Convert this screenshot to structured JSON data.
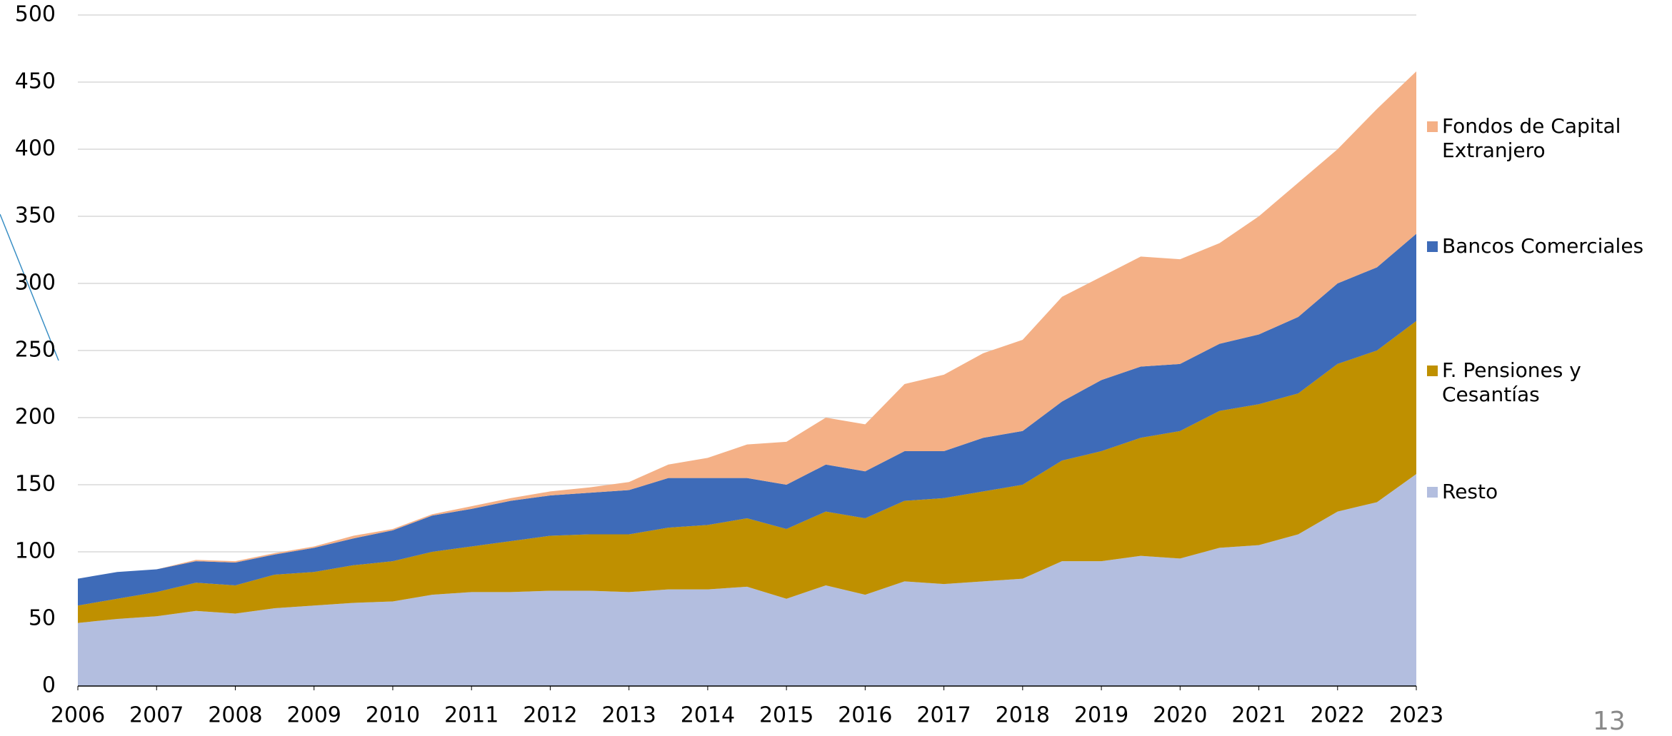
{
  "chart_data": {
    "type": "stacked_area",
    "x": [
      2006,
      2006.5,
      2007,
      2007.5,
      2008,
      2008.5,
      2009,
      2009.5,
      2010,
      2010.5,
      2011,
      2011.5,
      2012,
      2012.5,
      2013,
      2013.5,
      2014,
      2014.5,
      2015,
      2015.5,
      2016,
      2016.5,
      2017,
      2017.5,
      2018,
      2018.5,
      2019,
      2019.5,
      2020,
      2020.5,
      2021,
      2021.5,
      2022,
      2022.5,
      2023
    ],
    "series": [
      {
        "name": "Resto",
        "color": "#b3bedf",
        "values": [
          47,
          50,
          52,
          56,
          54,
          58,
          60,
          62,
          63,
          68,
          70,
          70,
          71,
          71,
          70,
          72,
          72,
          74,
          65,
          75,
          68,
          78,
          76,
          78,
          80,
          93,
          93,
          97,
          95,
          103,
          105,
          113,
          130,
          137,
          158
        ]
      },
      {
        "name": "F. Pensiones y Cesantías",
        "color": "#bf9000",
        "values": [
          13,
          15,
          18,
          21,
          21,
          25,
          25,
          28,
          30,
          32,
          34,
          38,
          41,
          42,
          43,
          46,
          48,
          51,
          52,
          55,
          57,
          60,
          64,
          67,
          70,
          75,
          82,
          88,
          95,
          102,
          105,
          105,
          110,
          113,
          114
        ]
      },
      {
        "name": "Bancos Comerciales",
        "color": "#3e6bb8",
        "values": [
          20,
          20,
          17,
          16,
          17,
          15,
          18,
          20,
          23,
          27,
          28,
          30,
          30,
          31,
          33,
          37,
          35,
          30,
          33,
          35,
          35,
          37,
          35,
          40,
          40,
          44,
          53,
          53,
          50,
          50,
          52,
          57,
          60,
          62,
          65
        ]
      },
      {
        "name": "Fondos de Capital Extranjero",
        "color": "#f4b086",
        "values": [
          0,
          0,
          0,
          1,
          1,
          1,
          1,
          2,
          1,
          1,
          2,
          2,
          3,
          4,
          6,
          10,
          15,
          25,
          32,
          35,
          35,
          50,
          57,
          63,
          68,
          78,
          77,
          82,
          78,
          75,
          88,
          100,
          100,
          118,
          121
        ]
      }
    ],
    "xlim": [
      2006,
      2023
    ],
    "xticks": [
      2006,
      2007,
      2008,
      2009,
      2010,
      2011,
      2012,
      2013,
      2014,
      2015,
      2016,
      2017,
      2018,
      2019,
      2020,
      2021,
      2022,
      2023
    ],
    "ylim": [
      0,
      500
    ],
    "yticks": [
      0,
      50,
      100,
      150,
      200,
      250,
      300,
      350,
      400,
      450,
      500
    ],
    "grid": true
  },
  "slide_number": "13"
}
